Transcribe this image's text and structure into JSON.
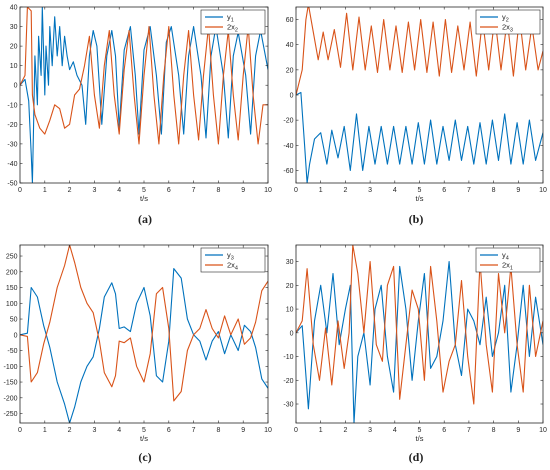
{
  "chart_data": [
    {
      "type": "line",
      "caption": "(a)",
      "xlabel": "t/s",
      "xlim": [
        0,
        10
      ],
      "ylim": [
        -50,
        40
      ],
      "xticks": [
        0,
        1,
        2,
        3,
        4,
        5,
        6,
        7,
        8,
        9,
        10
      ],
      "yticks": [
        -50,
        -40,
        -30,
        -20,
        -10,
        0,
        10,
        20,
        30,
        40
      ],
      "legend_position": "top-right",
      "series": [
        {
          "name": "y1",
          "name_base": "y",
          "name_sub": "1",
          "color": "#0072BD",
          "x": [
            0,
            0.2,
            0.35,
            0.45,
            0.5,
            0.55,
            0.6,
            0.7,
            0.75,
            0.85,
            0.9,
            1.0,
            1.05,
            1.15,
            1.2,
            1.3,
            1.4,
            1.5,
            1.6,
            1.7,
            1.8,
            1.9,
            2.0,
            2.15,
            2.3,
            2.5,
            2.65,
            2.8,
            2.95,
            3.1,
            3.3,
            3.5,
            3.7,
            3.85,
            4.0,
            4.2,
            4.45,
            4.65,
            4.8,
            5.0,
            5.25,
            5.5,
            5.7,
            5.9,
            6.1,
            6.4,
            6.6,
            6.8,
            7.0,
            7.3,
            7.5,
            7.7,
            7.9,
            8.2,
            8.4,
            8.6,
            8.8,
            9.1,
            9.3,
            9.5,
            9.7,
            10.0
          ],
          "y": [
            0,
            3,
            -8,
            -35,
            -50,
            -20,
            15,
            -10,
            25,
            5,
            40,
            -5,
            20,
            0,
            30,
            10,
            35,
            15,
            30,
            10,
            25,
            15,
            8,
            12,
            5,
            0,
            -20,
            15,
            28,
            20,
            -20,
            15,
            28,
            15,
            -22,
            18,
            30,
            5,
            -25,
            18,
            30,
            5,
            -25,
            22,
            30,
            5,
            -25,
            15,
            30,
            5,
            -27,
            15,
            30,
            5,
            -27,
            15,
            27,
            5,
            -25,
            15,
            28,
            8
          ]
        },
        {
          "name": "2x2",
          "name_base": "2x",
          "name_sub": "2",
          "color": "#D95319",
          "x": [
            0,
            0.2,
            0.3,
            0.45,
            0.5,
            0.6,
            0.8,
            1.0,
            1.2,
            1.4,
            1.6,
            1.8,
            2.0,
            2.2,
            2.4,
            2.6,
            2.8,
            3.0,
            3.2,
            3.4,
            3.6,
            3.8,
            4.0,
            4.2,
            4.4,
            4.6,
            4.8,
            5.0,
            5.2,
            5.4,
            5.6,
            5.8,
            6.0,
            6.2,
            6.4,
            6.6,
            6.8,
            7.0,
            7.2,
            7.4,
            7.6,
            7.8,
            8.0,
            8.2,
            8.4,
            8.6,
            8.8,
            9.0,
            9.2,
            9.4,
            9.6,
            9.8,
            10.0
          ],
          "y": [
            0,
            5,
            40,
            38,
            -5,
            -15,
            -22,
            -25,
            -18,
            -10,
            -12,
            -22,
            -20,
            -5,
            -2,
            10,
            25,
            -5,
            -22,
            10,
            28,
            -5,
            -25,
            8,
            28,
            -5,
            -30,
            5,
            30,
            -5,
            -30,
            5,
            30,
            -5,
            -30,
            5,
            28,
            -5,
            -28,
            5,
            30,
            -5,
            -30,
            5,
            28,
            -5,
            -28,
            5,
            30,
            -5,
            -30,
            -10,
            -10
          ]
        }
      ]
    },
    {
      "type": "line",
      "caption": "(b)",
      "xlabel": "t/s",
      "xlim": [
        0,
        10
      ],
      "ylim": [
        -70,
        70
      ],
      "xticks": [
        0,
        1,
        2,
        3,
        4,
        5,
        6,
        7,
        8,
        9,
        10
      ],
      "yticks": [
        -60,
        -40,
        -20,
        0,
        20,
        40,
        60
      ],
      "legend_position": "top-right",
      "series": [
        {
          "name": "y2",
          "name_base": "y",
          "name_sub": "2",
          "color": "#0072BD",
          "x": [
            0,
            0.2,
            0.35,
            0.45,
            0.55,
            0.75,
            1.0,
            1.25,
            1.45,
            1.7,
            1.95,
            2.2,
            2.45,
            2.7,
            2.95,
            3.2,
            3.45,
            3.7,
            3.95,
            4.2,
            4.45,
            4.7,
            4.95,
            5.2,
            5.45,
            5.7,
            5.95,
            6.2,
            6.45,
            6.7,
            6.95,
            7.2,
            7.45,
            7.7,
            7.95,
            8.2,
            8.45,
            8.7,
            8.95,
            9.2,
            9.45,
            9.7,
            10.0
          ],
          "y": [
            0,
            2,
            -40,
            -70,
            -55,
            -35,
            -30,
            -55,
            -28,
            -50,
            -25,
            -60,
            -15,
            -60,
            -25,
            -55,
            -25,
            -55,
            -25,
            -55,
            -25,
            -55,
            -22,
            -55,
            -20,
            -55,
            -25,
            -52,
            -20,
            -52,
            -25,
            -55,
            -22,
            -55,
            -20,
            -52,
            -15,
            -55,
            -22,
            -55,
            -20,
            -52,
            -30
          ]
        },
        {
          "name": "2x3",
          "name_base": "2x",
          "name_sub": "3",
          "color": "#D95319",
          "x": [
            0,
            0.25,
            0.4,
            0.5,
            0.7,
            0.9,
            1.1,
            1.3,
            1.55,
            1.8,
            2.05,
            2.3,
            2.55,
            2.8,
            3.05,
            3.3,
            3.55,
            3.8,
            4.05,
            4.3,
            4.55,
            4.8,
            5.05,
            5.3,
            5.55,
            5.8,
            6.05,
            6.3,
            6.55,
            6.8,
            7.05,
            7.3,
            7.55,
            7.8,
            8.05,
            8.3,
            8.55,
            8.8,
            9.05,
            9.3,
            9.55,
            9.8,
            10.0
          ],
          "y": [
            0,
            20,
            60,
            72,
            50,
            28,
            50,
            28,
            52,
            22,
            65,
            20,
            62,
            20,
            55,
            18,
            60,
            20,
            55,
            18,
            58,
            20,
            60,
            18,
            58,
            15,
            60,
            18,
            55,
            20,
            58,
            15,
            60,
            20,
            62,
            20,
            60,
            15,
            62,
            20,
            55,
            20,
            35
          ]
        }
      ]
    },
    {
      "type": "line",
      "caption": "(c)",
      "xlabel": "t/s",
      "xlim": [
        0,
        10
      ],
      "ylim": [
        -280,
        285
      ],
      "xticks": [
        0,
        1,
        2,
        3,
        4,
        5,
        6,
        7,
        8,
        9,
        10
      ],
      "yticks": [
        -250,
        -200,
        -150,
        -100,
        -50,
        0,
        50,
        100,
        150,
        200,
        250
      ],
      "legend_position": "top-right",
      "series": [
        {
          "name": "y3",
          "name_base": "y",
          "name_sub": "3",
          "color": "#0072BD",
          "x": [
            0,
            0.3,
            0.45,
            0.7,
            0.95,
            1.2,
            1.5,
            1.8,
            2.0,
            2.2,
            2.45,
            2.7,
            2.95,
            3.2,
            3.4,
            3.7,
            3.85,
            4.0,
            4.2,
            4.45,
            4.7,
            5.0,
            5.25,
            5.5,
            5.75,
            6.0,
            6.2,
            6.5,
            6.75,
            7.0,
            7.25,
            7.5,
            7.75,
            8.0,
            8.25,
            8.5,
            8.8,
            9.05,
            9.3,
            9.5,
            9.75,
            10.0
          ],
          "y": [
            0,
            5,
            150,
            120,
            30,
            -40,
            -150,
            -220,
            -280,
            -230,
            -150,
            -100,
            -70,
            20,
            120,
            165,
            130,
            20,
            25,
            10,
            100,
            150,
            60,
            -130,
            -150,
            -20,
            210,
            180,
            50,
            0,
            -20,
            -80,
            -20,
            10,
            -60,
            0,
            -50,
            30,
            10,
            -40,
            -140,
            -170
          ]
        },
        {
          "name": "2x4",
          "name_base": "2x",
          "name_sub": "4",
          "color": "#D95319",
          "x": [
            0,
            0.3,
            0.45,
            0.7,
            0.95,
            1.2,
            1.5,
            1.8,
            2.0,
            2.2,
            2.45,
            2.7,
            2.95,
            3.2,
            3.4,
            3.7,
            3.85,
            4.0,
            4.2,
            4.45,
            4.7,
            5.0,
            5.25,
            5.5,
            5.75,
            6.0,
            6.2,
            6.5,
            6.75,
            7.0,
            7.25,
            7.5,
            7.75,
            8.0,
            8.25,
            8.5,
            8.8,
            9.05,
            9.3,
            9.5,
            9.75,
            10.0
          ],
          "y": [
            0,
            -5,
            -150,
            -120,
            -30,
            40,
            150,
            220,
            285,
            230,
            150,
            100,
            70,
            -20,
            -120,
            -165,
            -130,
            -20,
            -25,
            -10,
            -100,
            -150,
            -60,
            130,
            150,
            20,
            -210,
            -180,
            -50,
            0,
            20,
            80,
            20,
            -10,
            60,
            0,
            50,
            -30,
            -10,
            40,
            140,
            170
          ]
        }
      ]
    },
    {
      "type": "line",
      "caption": "(d)",
      "xlabel": "t/s",
      "xlim": [
        0,
        10
      ],
      "ylim": [
        -38,
        37
      ],
      "xticks": [
        0,
        1,
        2,
        3,
        4,
        5,
        6,
        7,
        8,
        9,
        10
      ],
      "yticks": [
        -30,
        -20,
        -10,
        0,
        10,
        20,
        30
      ],
      "legend_position": "top-right",
      "series": [
        {
          "name": "y4",
          "name_base": "y",
          "name_sub": "4",
          "color": "#0072BD",
          "x": [
            0,
            0.25,
            0.5,
            0.75,
            1.0,
            1.25,
            1.5,
            1.75,
            2.0,
            2.2,
            2.35,
            2.5,
            2.75,
            3.0,
            3.2,
            3.45,
            3.7,
            3.95,
            4.2,
            4.45,
            4.7,
            4.95,
            5.2,
            5.45,
            5.7,
            5.95,
            6.2,
            6.45,
            6.7,
            6.95,
            7.2,
            7.45,
            7.7,
            7.95,
            8.2,
            8.45,
            8.7,
            8.95,
            9.2,
            9.45,
            9.7,
            10.0
          ],
          "y": [
            0,
            3,
            -32,
            5,
            20,
            0,
            25,
            -5,
            10,
            20,
            -38,
            -10,
            0,
            -22,
            10,
            20,
            -10,
            -25,
            28,
            10,
            -20,
            5,
            25,
            -15,
            -10,
            5,
            30,
            -5,
            -18,
            10,
            5,
            -5,
            15,
            -10,
            0,
            20,
            -25,
            -5,
            20,
            -10,
            15,
            -5
          ]
        },
        {
          "name": "2x1",
          "name_base": "2x",
          "name_sub": "1",
          "color": "#D95319",
          "x": [
            0,
            0.25,
            0.45,
            0.7,
            0.95,
            1.2,
            1.45,
            1.7,
            1.95,
            2.15,
            2.3,
            2.5,
            2.75,
            3.0,
            3.25,
            3.5,
            3.7,
            3.95,
            4.2,
            4.45,
            4.7,
            4.95,
            5.2,
            5.45,
            5.7,
            5.95,
            6.2,
            6.45,
            6.7,
            6.95,
            7.2,
            7.45,
            7.7,
            7.95,
            8.2,
            8.45,
            8.7,
            8.95,
            9.2,
            9.45,
            9.7,
            10.0
          ],
          "y": [
            0,
            5,
            27,
            -5,
            -20,
            2,
            -22,
            5,
            -15,
            0,
            37,
            25,
            0,
            30,
            -5,
            -12,
            20,
            28,
            -28,
            -5,
            18,
            10,
            -20,
            28,
            5,
            -25,
            -12,
            -5,
            22,
            -10,
            -30,
            30,
            -5,
            -25,
            25,
            0,
            28,
            -5,
            -25,
            20,
            -10,
            5
          ]
        }
      ]
    }
  ]
}
